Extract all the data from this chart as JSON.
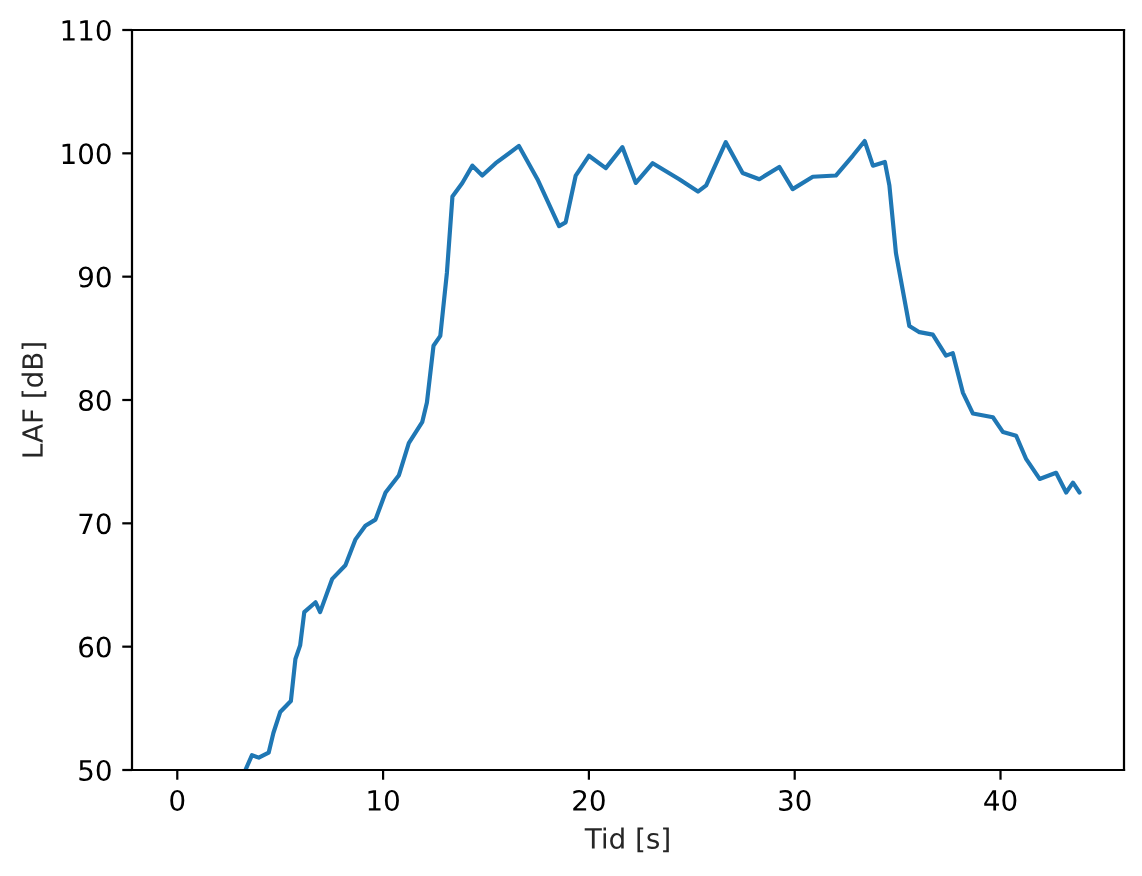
{
  "chart_data": {
    "type": "line",
    "xlabel": "Tid [s]",
    "ylabel": "LAF [dB]",
    "xlim": [
      -2.2,
      46.0
    ],
    "ylim": [
      50,
      110
    ],
    "xticks": [
      0,
      10,
      20,
      30,
      40
    ],
    "yticks": [
      50,
      60,
      70,
      80,
      90,
      100,
      110
    ],
    "grid": false,
    "legend": false,
    "series": [
      {
        "color": "#1f77b4",
        "x": [
          3.31,
          3.63,
          3.96,
          4.44,
          4.67,
          5.0,
          5.52,
          5.74,
          5.97,
          6.17,
          6.72,
          6.94,
          7.53,
          8.17,
          8.66,
          9.14,
          9.63,
          10.12,
          10.77,
          11.25,
          11.9,
          12.13,
          12.45,
          12.78,
          13.1,
          13.37,
          13.85,
          14.34,
          14.82,
          15.47,
          16.6,
          17.5,
          18.55,
          18.87,
          19.36,
          20.0,
          20.82,
          21.63,
          22.28,
          23.1,
          24.39,
          25.3,
          25.7,
          26.65,
          27.47,
          28.28,
          29.25,
          29.9,
          30.88,
          32.0,
          32.82,
          33.4,
          33.8,
          34.38,
          34.6,
          34.92,
          35.57,
          36.06,
          36.71,
          37.35,
          37.68,
          38.17,
          38.66,
          39.63,
          40.12,
          40.76,
          41.25,
          41.9,
          42.7,
          43.19,
          43.52,
          43.84
        ],
        "values": [
          50.0,
          51.2,
          51.0,
          51.4,
          53.0,
          54.7,
          55.6,
          59.0,
          60.1,
          62.8,
          63.6,
          62.8,
          65.5,
          66.6,
          68.7,
          69.8,
          70.3,
          72.5,
          73.9,
          76.5,
          78.2,
          79.8,
          84.4,
          85.2,
          90.3,
          96.5,
          97.6,
          99.0,
          98.2,
          99.2,
          100.6,
          97.9,
          94.1,
          94.4,
          98.2,
          99.8,
          98.8,
          100.5,
          97.6,
          99.2,
          97.9,
          96.9,
          97.4,
          100.9,
          98.4,
          97.9,
          98.9,
          97.1,
          98.1,
          98.2,
          99.8,
          101.0,
          99.0,
          99.3,
          97.4,
          91.9,
          86.0,
          85.5,
          85.3,
          83.6,
          83.8,
          80.6,
          78.9,
          78.6,
          77.4,
          77.1,
          75.2,
          73.6,
          74.1,
          72.5,
          73.3,
          72.5
        ]
      }
    ]
  }
}
